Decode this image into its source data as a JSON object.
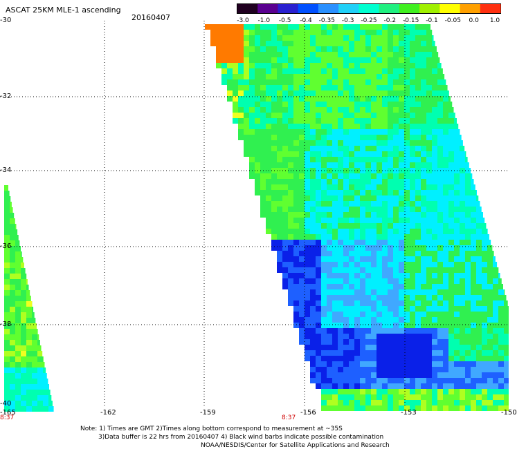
{
  "header": {
    "title": "ASCAT 25KM MLE-1 ascending",
    "date": "20160407"
  },
  "colorbar": {
    "labels": [
      "-3.0",
      "-1.0",
      "-0.5",
      "-0.4",
      "-0.35",
      "-0.3",
      "-0.25",
      "-0.2",
      "-0.15",
      "-0.1",
      "-0.05",
      "0.0",
      "1.0"
    ],
    "colors": [
      "#200020",
      "#5a0090",
      "#2a20d0",
      "#0050ff",
      "#2a90ff",
      "#20d0f8",
      "#00ffd0",
      "#20f080",
      "#40f020",
      "#a0f000",
      "#ffff00",
      "#ffa000",
      "#ff3010"
    ]
  },
  "axes": {
    "x_ticks": [
      "-165",
      "-162",
      "-159",
      "-156",
      "-153",
      "-150"
    ],
    "y_ticks": [
      "-30",
      "-32",
      "-34",
      "-36",
      "-38",
      "-40"
    ]
  },
  "times": [
    "8:37",
    "8:37"
  ],
  "notes": {
    "line1": "Note: 1) Times are GMT 2)Times along bottom correspond to measurement at ~35S",
    "line2": "3)Data buffer is 22 hrs from 20160407 4) Black wind barbs indicate possible contamination",
    "line3": "NOAA/NESDIS/Center for Satellite Applications and Research"
  },
  "palette": {
    "deep_blue": "#0a20e8",
    "blue": "#1e60ff",
    "light_blue": "#40a8ff",
    "cyan": "#00f0ff",
    "aqua": "#00ffb0",
    "green": "#30f050",
    "light_green": "#60ff30",
    "yellow_green": "#b0ff20",
    "yellow": "#f0ff20",
    "orange": "#ff7a00"
  }
}
